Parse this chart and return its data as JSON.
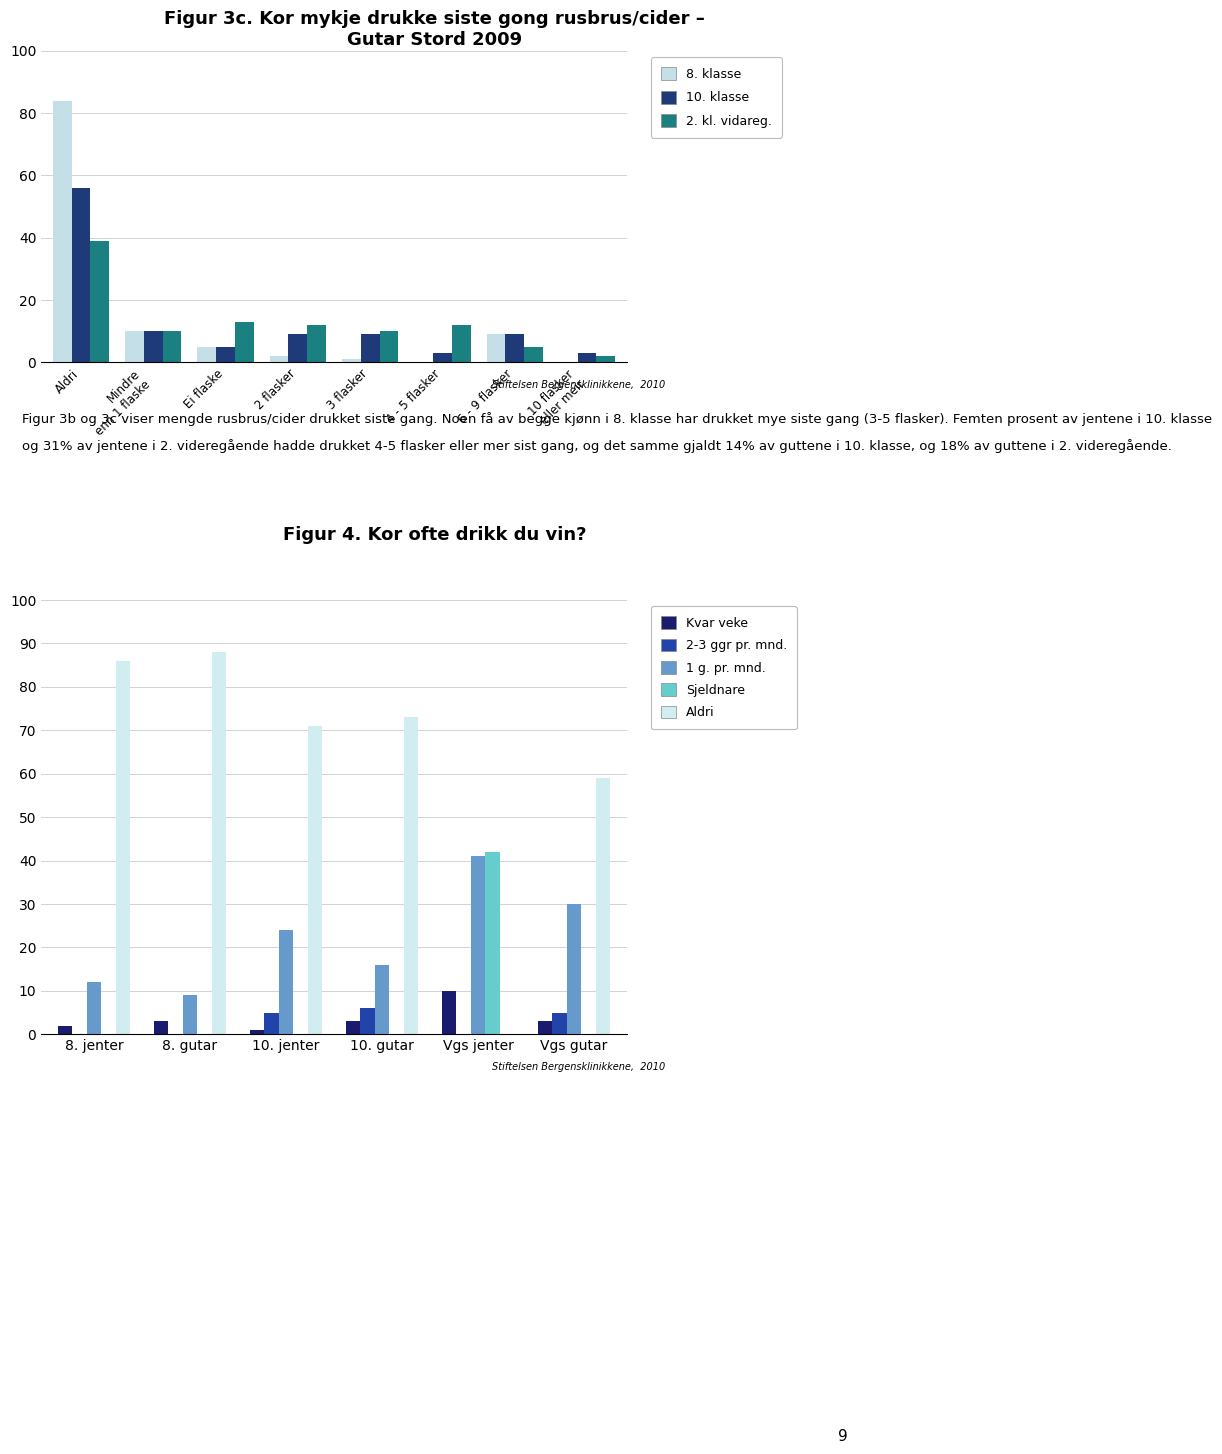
{
  "chart1": {
    "title": "Figur 3c. Kor mykje drukke siste gong rusbrus/cider –\nGutar Stord 2009",
    "categories": [
      "Aldri",
      "Mindre\nenn 1 flaske",
      "Ei flaske",
      "2 flasker",
      "3 flasker",
      "4 - 5 flasker",
      "6 - 9 flasker",
      "10 flasker\neller meir"
    ],
    "series": {
      "8. klasse": [
        84,
        10,
        5,
        2,
        1,
        0,
        9,
        0
      ],
      "10. klasse": [
        56,
        10,
        5,
        9,
        9,
        3,
        9,
        3
      ],
      "2. kl. vidareg.": [
        39,
        10,
        13,
        12,
        10,
        12,
        5,
        2
      ]
    },
    "colors": {
      "8. klasse": "#c5dfe8",
      "10. klasse": "#1f3a78",
      "2. kl. vidareg.": "#1a8080"
    },
    "ylim": [
      0,
      100
    ],
    "yticks": [
      0,
      20,
      40,
      60,
      80,
      100
    ]
  },
  "chart2": {
    "title": "Figur 4. Kor ofte drikk du vin?",
    "categories": [
      "8. jenter",
      "8. gutar",
      "10. jenter",
      "10. gutar",
      "Vgs jenter",
      "Vgs gutar"
    ],
    "series": {
      "Kvar veke": [
        2,
        3,
        1,
        3,
        10,
        3
      ],
      "2-3 ggr pr. mnd.": [
        0,
        0,
        5,
        6,
        0,
        5
      ],
      "1 g. pr. mnd.": [
        12,
        9,
        24,
        16,
        41,
        30
      ],
      "Sjeldnare": [
        0,
        0,
        0,
        0,
        42,
        0
      ],
      "Aldri": [
        86,
        88,
        71,
        73,
        0,
        59
      ]
    },
    "colors": {
      "Kvar veke": "#1a1a6e",
      "2-3 ggr pr. mnd.": "#2244aa",
      "1 g. pr. mnd.": "#6699cc",
      "Sjeldnare": "#66cccc",
      "Aldri": "#d0eef0"
    },
    "ylim": [
      0,
      100
    ],
    "yticks": [
      0,
      10,
      20,
      30,
      40,
      50,
      60,
      70,
      80,
      90,
      100
    ]
  },
  "footer": "Stiftelsen Bergensklinikkene,  2010",
  "page_number": "9",
  "body_text_line1": "Figur 3b og 3c viser mengde rusbrus/cider drukket siste gang. Noen få av begge kjønn i 8. klasse har drukket mye siste gang (3-5 flasker). Femten prosent av jentene i 10. klasse",
  "body_text_line2": "og 31% av jentene i 2. videregående hadde drukket 4-5 flasker eller mer sist gang, og det samme gjaldt 14% av guttene i 10. klasse, og 18% av guttene i 2. videregående."
}
